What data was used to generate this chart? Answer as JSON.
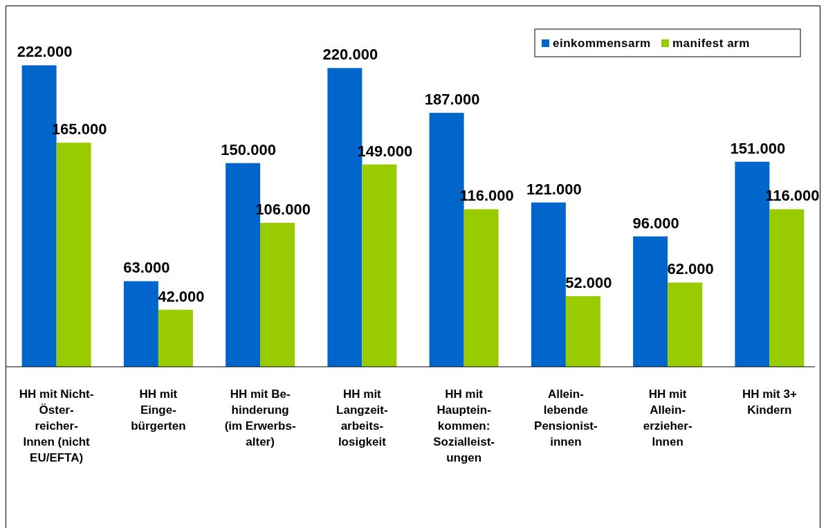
{
  "chart_data": {
    "type": "bar",
    "categories": [
      "HH mit Nicht-\nÖster-\nreicher-\nInnen (nicht\nEU/EFTA)",
      "HH mit\nEinge-\nbürgerten",
      "HH mit Be-\nhinderung\n(im Erwerbs-\nalter)",
      "HH mit\nLangzeit-\narbeits-\nlosigkeit",
      "HH mit\nHauptein-\nkommen:\nSozialleist-\nungen",
      "Allein-\nlebende\nPensionist-\ninnen",
      "HH mit\nAllein-\nerzieher-\nInnen",
      "HH mit 3+\nKindern"
    ],
    "series": [
      {
        "name": "einkommensarm",
        "color": "#0066cc",
        "values": [
          222000,
          63000,
          150000,
          220000,
          187000,
          121000,
          96000,
          151000
        ],
        "value_labels": [
          "222.000",
          "63.000",
          "150.000",
          "220.000",
          "187.000",
          "121.000",
          "96.000",
          "151.000"
        ]
      },
      {
        "name": "manifest arm",
        "color": "#99cc00",
        "values": [
          165000,
          42000,
          106000,
          149000,
          116000,
          52000,
          62000,
          116000
        ],
        "value_labels": [
          "165.000",
          "42.000",
          "106.000",
          "149.000",
          "116.000",
          "52.000",
          "62.000",
          "116.000"
        ]
      }
    ],
    "relative": false,
    "legend": "top right",
    "grid": false
  }
}
